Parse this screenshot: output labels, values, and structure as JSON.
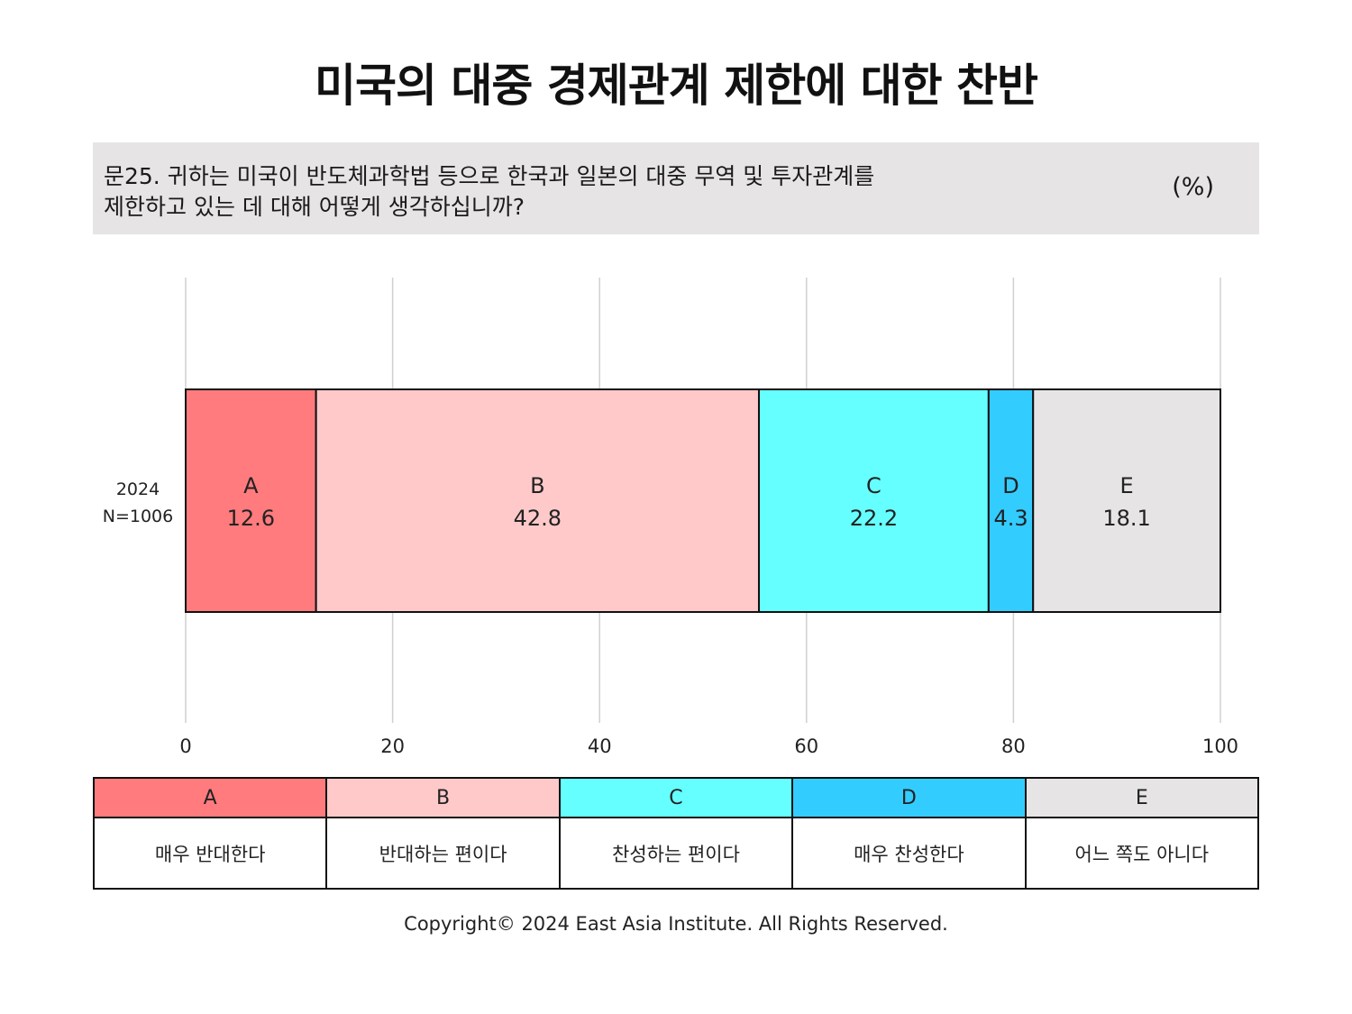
{
  "title": "미국의 대중 경제관계 제한에 대한 찬반",
  "question": {
    "line1": "문25. 귀하는 미국이 반도체과학법 등으로 한국과 일본의 대중 무역 및 투자관계를",
    "line2": "제한하고 있는 데 대해 어떻게 생각하십니까?",
    "unit": "(%)"
  },
  "chart_data": {
    "type": "bar",
    "orientation": "horizontal",
    "stacked": true,
    "categories": [
      "2024\nN=1006"
    ],
    "series": [
      {
        "name": "A",
        "values": [
          12.6
        ],
        "color": "#ff7b7d"
      },
      {
        "name": "B",
        "values": [
          42.8
        ],
        "color": "#ffc9ca"
      },
      {
        "name": "C",
        "values": [
          22.2
        ],
        "color": "#66ffff"
      },
      {
        "name": "D",
        "values": [
          4.3
        ],
        "color": "#33ccff"
      },
      {
        "name": "E",
        "values": [
          18.1
        ],
        "color": "#e6e4e5"
      }
    ],
    "xlim": [
      0,
      100
    ],
    "xticks": [
      0,
      20,
      40,
      60,
      80,
      100
    ],
    "grid": "vertical"
  },
  "legend": [
    {
      "code": "A",
      "desc": "매우 반대한다",
      "color": "#ff7b7d"
    },
    {
      "code": "B",
      "desc": "반대하는 편이다",
      "color": "#ffc9ca"
    },
    {
      "code": "C",
      "desc": "찬성하는 편이다",
      "color": "#66ffff"
    },
    {
      "code": "D",
      "desc": "매우 찬성한다",
      "color": "#33ccff"
    },
    {
      "code": "E",
      "desc": "어느 쪽도 아니다",
      "color": "#e6e4e5"
    }
  ],
  "copyright": "Copyright© 2024 East Asia Institute. All Rights Reserved."
}
